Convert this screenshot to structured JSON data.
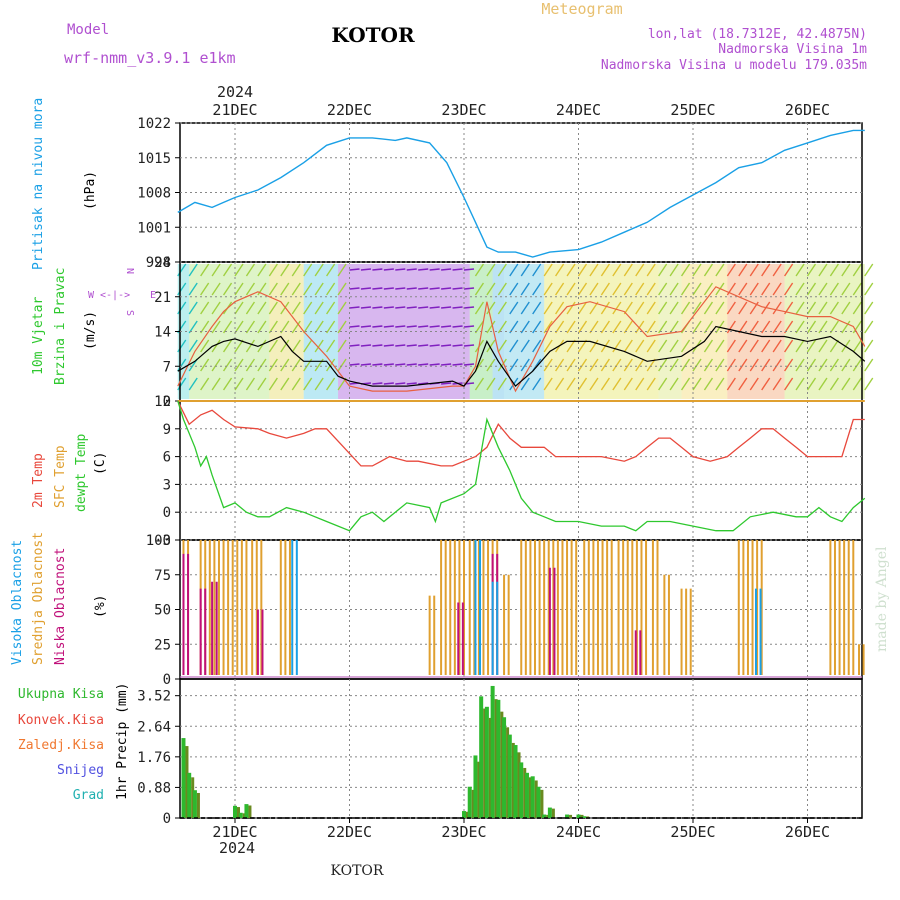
{
  "header": {
    "model_label": "Model",
    "model_name": "wrf-nmm_v3.9.1 e1km",
    "title": "KOTOR",
    "meteogram_label": "Meteogram",
    "lonlat": "lon,lat (18.7312E, 42.4875N)",
    "elevation": "Nadmorska Visina 1m",
    "model_elevation": "Nadmorska Visina u modelu 179.035m",
    "year_top": "2024",
    "year_bottom": "2024",
    "footer": "KOTOR",
    "watermark": "made by Angel"
  },
  "colors": {
    "pressure": "#1aa0e6",
    "temp2m": "#e8483c",
    "sfc": "#e0a030",
    "dewpoint": "#2ec82e",
    "high_cloud": "#1aa0e6",
    "mid_cloud": "#e0a030",
    "low_cloud": "#c0107a",
    "precip_total": "#2eb82e",
    "precip_conv": "#e8483c",
    "purple": "#b050d0"
  },
  "chart_data": [
    {
      "type": "line",
      "name": "pressure",
      "labels": [
        "Pritisak na nivou mora",
        "(hPa)"
      ],
      "yticks": [
        "1022",
        "1015",
        "1008",
        "1001",
        "994"
      ],
      "ylim": [
        994,
        1022
      ],
      "x_unit": "days since 21DEC 00UTC",
      "x_categories": [
        "21DEC",
        "22DEC",
        "23DEC",
        "24DEC",
        "25DEC",
        "26DEC"
      ],
      "series": [
        {
          "name": "pressure",
          "points": [
            [
              -0.5,
              1004
            ],
            [
              -0.35,
              1006
            ],
            [
              -0.2,
              1005
            ],
            [
              -0.1,
              1006
            ],
            [
              0,
              1007
            ],
            [
              0.2,
              1008.5
            ],
            [
              0.4,
              1011
            ],
            [
              0.6,
              1014
            ],
            [
              0.8,
              1017.5
            ],
            [
              1.0,
              1019
            ],
            [
              1.2,
              1019
            ],
            [
              1.4,
              1018.5
            ],
            [
              1.5,
              1019
            ],
            [
              1.7,
              1018
            ],
            [
              1.85,
              1014
            ],
            [
              2.0,
              1007
            ],
            [
              2.1,
              1002
            ],
            [
              2.2,
              997
            ],
            [
              2.3,
              996
            ],
            [
              2.45,
              996
            ],
            [
              2.6,
              995
            ],
            [
              2.75,
              996
            ],
            [
              3.0,
              996.5
            ],
            [
              3.2,
              998
            ],
            [
              3.4,
              1000
            ],
            [
              3.6,
              1002
            ],
            [
              3.8,
              1005
            ],
            [
              4.0,
              1007.5
            ],
            [
              4.2,
              1010
            ],
            [
              4.4,
              1013
            ],
            [
              4.6,
              1014
            ],
            [
              4.8,
              1016.5
            ],
            [
              5.0,
              1018
            ],
            [
              5.2,
              1019.5
            ],
            [
              5.4,
              1020.5
            ],
            [
              5.5,
              1020.5
            ]
          ]
        }
      ]
    },
    {
      "type": "line",
      "name": "wind",
      "labels": [
        "10m Vjetar",
        "Brzina i Pravac",
        "(m/s)"
      ],
      "yticks": [
        "28",
        "21",
        "14",
        "7",
        "0"
      ],
      "ylim": [
        0,
        28
      ],
      "series": [
        {
          "name": "speed",
          "points": [
            [
              -0.5,
              6
            ],
            [
              -0.35,
              8
            ],
            [
              -0.2,
              11
            ],
            [
              -0.1,
              12
            ],
            [
              0,
              12.5
            ],
            [
              0.2,
              11
            ],
            [
              0.4,
              13
            ],
            [
              0.5,
              10
            ],
            [
              0.6,
              8
            ],
            [
              0.8,
              8
            ],
            [
              0.9,
              5
            ],
            [
              1.0,
              4
            ],
            [
              1.2,
              3
            ],
            [
              1.5,
              3
            ],
            [
              1.9,
              4
            ],
            [
              2.0,
              3
            ],
            [
              2.1,
              6
            ],
            [
              2.2,
              12
            ],
            [
              2.3,
              8
            ],
            [
              2.45,
              3
            ],
            [
              2.6,
              6
            ],
            [
              2.75,
              10
            ],
            [
              2.9,
              12
            ],
            [
              3.1,
              12
            ],
            [
              3.4,
              10
            ],
            [
              3.6,
              8
            ],
            [
              3.9,
              9
            ],
            [
              4.1,
              12
            ],
            [
              4.2,
              15
            ],
            [
              4.4,
              14
            ],
            [
              4.6,
              13
            ],
            [
              4.8,
              13
            ],
            [
              5.0,
              12
            ],
            [
              5.2,
              13
            ],
            [
              5.4,
              10
            ],
            [
              5.5,
              8
            ]
          ]
        },
        {
          "name": "gust",
          "points": [
            [
              -0.5,
              3
            ],
            [
              -0.35,
              10
            ],
            [
              -0.2,
              15
            ],
            [
              -0.1,
              18
            ],
            [
              0,
              20
            ],
            [
              0.2,
              22
            ],
            [
              0.4,
              20
            ],
            [
              0.5,
              17
            ],
            [
              0.6,
              14
            ],
            [
              0.8,
              9
            ],
            [
              1.0,
              3
            ],
            [
              1.2,
              2
            ],
            [
              1.5,
              2
            ],
            [
              1.9,
              3
            ],
            [
              2.0,
              3
            ],
            [
              2.1,
              7
            ],
            [
              2.2,
              20
            ],
            [
              2.3,
              10
            ],
            [
              2.45,
              2
            ],
            [
              2.6,
              8
            ],
            [
              2.75,
              15
            ],
            [
              2.9,
              19
            ],
            [
              3.1,
              20
            ],
            [
              3.4,
              18
            ],
            [
              3.6,
              13
            ],
            [
              3.9,
              14
            ],
            [
              4.1,
              20
            ],
            [
              4.2,
              23
            ],
            [
              4.4,
              21
            ],
            [
              4.6,
              19
            ],
            [
              4.8,
              18
            ],
            [
              5.0,
              17
            ],
            [
              5.2,
              17
            ],
            [
              5.4,
              15
            ],
            [
              5.5,
              11
            ]
          ]
        }
      ]
    },
    {
      "type": "line",
      "name": "temperature",
      "labels": [
        "2m Temp",
        "SFC Temp",
        "dewpt Temp",
        "(C)"
      ],
      "yticks": [
        "12",
        "9",
        "6",
        "3",
        "0",
        "-3"
      ],
      "ylim": [
        -3,
        12
      ],
      "series": [
        {
          "name": "2m Temp",
          "points": [
            [
              -0.5,
              12
            ],
            [
              -0.4,
              9.5
            ],
            [
              -0.3,
              10.5
            ],
            [
              -0.2,
              11
            ],
            [
              -0.1,
              10
            ],
            [
              0,
              9.2
            ],
            [
              0.2,
              9
            ],
            [
              0.3,
              8.5
            ],
            [
              0.45,
              8
            ],
            [
              0.6,
              8.5
            ],
            [
              0.7,
              9
            ],
            [
              0.8,
              9
            ],
            [
              0.95,
              7
            ],
            [
              1.1,
              5
            ],
            [
              1.2,
              5
            ],
            [
              1.35,
              6
            ],
            [
              1.5,
              5.5
            ],
            [
              1.6,
              5.5
            ],
            [
              1.8,
              5
            ],
            [
              1.9,
              5
            ],
            [
              2.0,
              5.5
            ],
            [
              2.1,
              6
            ],
            [
              2.2,
              7
            ],
            [
              2.3,
              9.5
            ],
            [
              2.4,
              8
            ],
            [
              2.5,
              7
            ],
            [
              2.7,
              7
            ],
            [
              2.8,
              6
            ],
            [
              3.0,
              6
            ],
            [
              3.2,
              6
            ],
            [
              3.4,
              5.5
            ],
            [
              3.5,
              6
            ],
            [
              3.6,
              7
            ],
            [
              3.7,
              8
            ],
            [
              3.8,
              8
            ],
            [
              3.9,
              7
            ],
            [
              4.0,
              6
            ],
            [
              4.15,
              5.5
            ],
            [
              4.3,
              6
            ],
            [
              4.4,
              7
            ],
            [
              4.5,
              8
            ],
            [
              4.6,
              9
            ],
            [
              4.7,
              9
            ],
            [
              4.8,
              8
            ],
            [
              4.9,
              7
            ],
            [
              5.0,
              6
            ],
            [
              5.15,
              6
            ],
            [
              5.3,
              6
            ],
            [
              5.4,
              10
            ],
            [
              5.5,
              10
            ]
          ]
        },
        {
          "name": "SFC Temp",
          "points": [
            [
              -0.5,
              12
            ],
            [
              5.5,
              12
            ]
          ]
        },
        {
          "name": "dewpt Temp",
          "points": [
            [
              -0.5,
              12
            ],
            [
              -0.45,
              10
            ],
            [
              -0.35,
              7
            ],
            [
              -0.3,
              5
            ],
            [
              -0.25,
              6
            ],
            [
              -0.2,
              4
            ],
            [
              -0.1,
              0.5
            ],
            [
              0,
              1
            ],
            [
              0.1,
              0
            ],
            [
              0.2,
              -0.5
            ],
            [
              0.3,
              -0.5
            ],
            [
              0.45,
              0.5
            ],
            [
              0.6,
              0
            ],
            [
              0.8,
              -1
            ],
            [
              1.0,
              -2
            ],
            [
              1.1,
              -0.5
            ],
            [
              1.2,
              0
            ],
            [
              1.3,
              -1
            ],
            [
              1.5,
              1
            ],
            [
              1.7,
              0.5
            ],
            [
              1.75,
              -1
            ],
            [
              1.8,
              1
            ],
            [
              2.0,
              2
            ],
            [
              2.1,
              3
            ],
            [
              2.2,
              10
            ],
            [
              2.3,
              7
            ],
            [
              2.4,
              4.5
            ],
            [
              2.5,
              1.5
            ],
            [
              2.6,
              0
            ],
            [
              2.7,
              -0.5
            ],
            [
              2.8,
              -1
            ],
            [
              3.0,
              -1
            ],
            [
              3.2,
              -1.5
            ],
            [
              3.4,
              -1.5
            ],
            [
              3.5,
              -2
            ],
            [
              3.6,
              -1
            ],
            [
              3.8,
              -1
            ],
            [
              4.0,
              -1.5
            ],
            [
              4.2,
              -2
            ],
            [
              4.35,
              -2
            ],
            [
              4.5,
              -0.5
            ],
            [
              4.7,
              0
            ],
            [
              4.9,
              -0.5
            ],
            [
              5.0,
              -0.5
            ],
            [
              5.1,
              0.5
            ],
            [
              5.2,
              -0.5
            ],
            [
              5.3,
              -1
            ],
            [
              5.4,
              0.5
            ],
            [
              5.5,
              1.5
            ]
          ]
        }
      ]
    },
    {
      "type": "bar",
      "name": "cloud",
      "labels": [
        "Visoka Oblacnost",
        "Srednja Oblacnost",
        "Niska Oblacnost",
        "(%)"
      ],
      "yticks": [
        "100",
        "75",
        "50",
        "25",
        "0"
      ],
      "ylim": [
        0,
        100
      ],
      "segments_mid_100": [
        [
          -0.45,
          -0.4
        ],
        [
          -0.3,
          0.1
        ],
        [
          0.15,
          0.25
        ],
        [
          0.4,
          0.5
        ],
        [
          1.8,
          2.0
        ],
        [
          2.05,
          2.3
        ],
        [
          2.5,
          3.0
        ],
        [
          3.05,
          3.3
        ],
        [
          3.35,
          3.6
        ],
        [
          3.65,
          3.7
        ],
        [
          4.4,
          4.6
        ],
        [
          5.2,
          5.4
        ]
      ],
      "segments_mid_partial": [
        [
          1.7,
          1.75,
          60
        ],
        [
          2.35,
          2.4,
          75
        ],
        [
          3.75,
          3.8,
          75
        ],
        [
          3.9,
          4.0,
          65
        ],
        [
          5.45,
          5.5,
          25
        ]
      ],
      "segments_high": [
        [
          0.5,
          0.55,
          100
        ],
        [
          2.1,
          2.15,
          100
        ],
        [
          2.25,
          2.3,
          70
        ],
        [
          4.55,
          4.6,
          65
        ]
      ],
      "segments_low": [
        [
          -0.45,
          -0.4,
          90
        ],
        [
          -0.3,
          -0.25,
          65
        ],
        [
          -0.2,
          -0.15,
          70
        ],
        [
          0.2,
          0.25,
          50
        ],
        [
          1.95,
          2.0,
          55
        ],
        [
          2.25,
          2.3,
          90
        ],
        [
          2.75,
          2.8,
          80
        ],
        [
          3.5,
          3.55,
          35
        ]
      ]
    },
    {
      "type": "bar",
      "name": "precip",
      "labels": [
        "Ukupna Kisa",
        "Konvek.Kisa",
        "Zaledj.Kisa",
        "Snijeg",
        "Grad",
        "1hr Precip (mm)"
      ],
      "yticks": [
        "3.52",
        "2.64",
        "1.76",
        "0.88",
        "0"
      ],
      "ylim": [
        0,
        4.0
      ],
      "bars": [
        [
          -0.45,
          2.3
        ],
        [
          -0.4,
          1.3
        ],
        [
          -0.35,
          0.8
        ],
        [
          0,
          0.35
        ],
        [
          0.05,
          0.15
        ],
        [
          0.1,
          0.4
        ],
        [
          2.0,
          0.2
        ],
        [
          2.05,
          0.9
        ],
        [
          2.1,
          1.8
        ],
        [
          2.15,
          3.5
        ],
        [
          2.2,
          3.2
        ],
        [
          2.25,
          3.8
        ],
        [
          2.3,
          3.4
        ],
        [
          2.35,
          2.9
        ],
        [
          2.4,
          2.4
        ],
        [
          2.45,
          2.1
        ],
        [
          2.5,
          1.6
        ],
        [
          2.55,
          1.3
        ],
        [
          2.6,
          1.2
        ],
        [
          2.65,
          0.9
        ],
        [
          2.7,
          0.1
        ],
        [
          2.75,
          0.3
        ],
        [
          2.9,
          0.1
        ],
        [
          3.0,
          0.1
        ],
        [
          3.05,
          0.05
        ]
      ]
    }
  ]
}
